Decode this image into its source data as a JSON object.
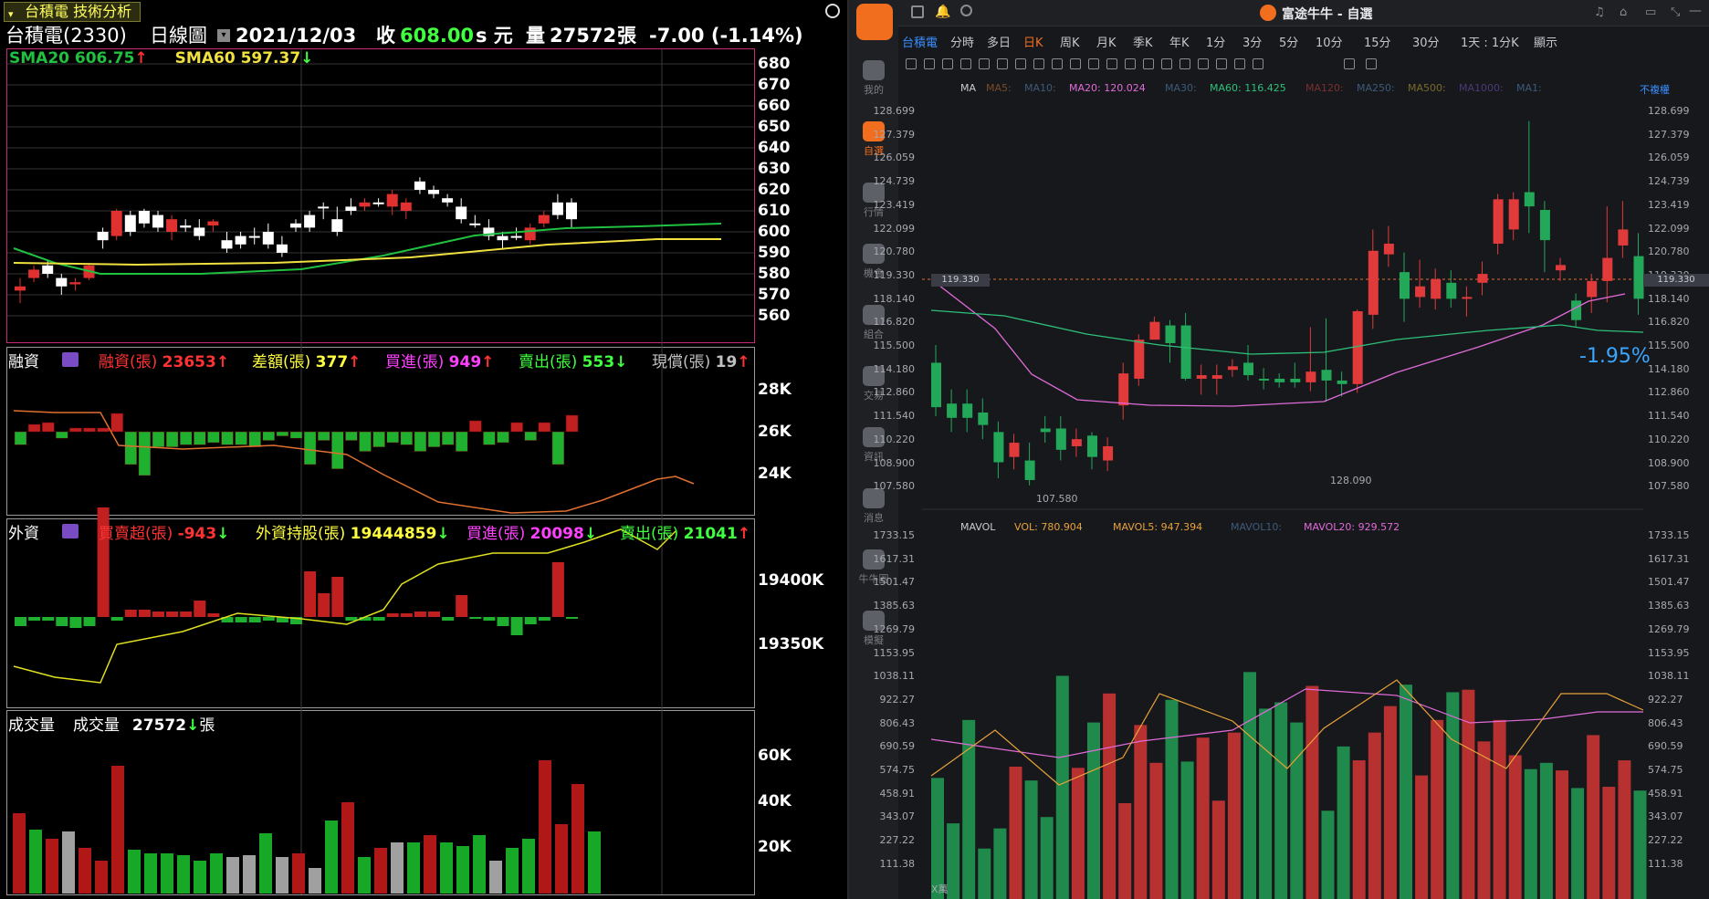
{
  "left": {
    "tab": "台積電 技術分析",
    "stock": "台積電(2330)",
    "period": "日線圖",
    "date": "2021/12/03",
    "close_label": "收",
    "close": "608.00",
    "close_unit": "s 元",
    "vol_label": "量",
    "volume": "27572",
    "vol_unit": "張",
    "change": "-7.00 (-1.14%)",
    "sma20": "SMA20 606.75",
    "sma60": "SMA60 597.37",
    "price_ticks": [
      "680",
      "670",
      "660",
      "650",
      "640",
      "630",
      "620",
      "610",
      "600",
      "590",
      "580",
      "570",
      "560"
    ],
    "margin": {
      "title": "融資",
      "items": [
        {
          "k": "融資(張)",
          "v": "23653",
          "c": "#ff3333",
          "d": "up"
        },
        {
          "k": "差額(張)",
          "v": "377",
          "c": "#ffff40",
          "d": "up"
        },
        {
          "k": "買進(張)",
          "v": "949",
          "c": "#ff40ff",
          "d": "up"
        },
        {
          "k": "賣出(張)",
          "v": "553",
          "c": "#40ff40",
          "d": "down"
        },
        {
          "k": "現償(張)",
          "v": "19",
          "c": "#c0c0c0",
          "d": "up"
        }
      ],
      "ticks": [
        "28K",
        "26K",
        "24K"
      ]
    },
    "foreign": {
      "title": "外資",
      "items": [
        {
          "k": "買賣超(張)",
          "v": "-943",
          "c": "#ff3333",
          "d": "down"
        },
        {
          "k": "外資持股(張)",
          "v": "19444859",
          "c": "#ffff40",
          "d": "down"
        },
        {
          "k": "買進(張)",
          "v": "20098",
          "c": "#ff40ff",
          "d": "down"
        },
        {
          "k": "賣出(張)",
          "v": "21041",
          "c": "#40ff40",
          "d": "up"
        }
      ],
      "ticks": [
        "19400K",
        "19350K"
      ]
    },
    "volpane": {
      "title": "成交量",
      "label": "成交量",
      "value": "27572",
      "unit": "張",
      "ticks": [
        "60K",
        "40K",
        "20K"
      ]
    }
  },
  "right": {
    "window_title": "富途牛牛 - 自選",
    "side": [
      "我的",
      "自選",
      "行情",
      "機會",
      "組合",
      "交易",
      "資訊",
      "消息",
      "牛牛圈",
      "模擬"
    ],
    "tabs": [
      "台積電",
      "分時",
      "多日",
      "日K",
      "周K",
      "月K",
      "季K",
      "年K",
      "1分",
      "3分",
      "5分",
      "10分",
      "15分",
      "30分",
      "1天 : 1分K",
      "顯示"
    ],
    "ma_labels": [
      {
        "t": "MA",
        "c": "#c9cbd2"
      },
      {
        "t": "MA5:",
        "c": "#7a4a2a"
      },
      {
        "t": "MA10:",
        "c": "#3d5a7a"
      },
      {
        "t": "MA20: 120.024",
        "c": "#e06bd8"
      },
      {
        "t": "MA30:",
        "c": "#3d5a7a"
      },
      {
        "t": "MA60: 116.425",
        "c": "#2ec07a"
      },
      {
        "t": "MA120:",
        "c": "#7a3030"
      },
      {
        "t": "MA250:",
        "c": "#3d5a7a"
      },
      {
        "t": "MA500:",
        "c": "#7a6a2a"
      },
      {
        "t": "MA1000:",
        "c": "#4a3a7a"
      },
      {
        "t": "MA1:",
        "c": "#3d5a7a"
      },
      {
        "t": "不複權",
        "c": "#3a8fff"
      }
    ],
    "price_ticks": [
      "128.699",
      "127.379",
      "126.059",
      "124.739",
      "123.419",
      "122.099",
      "120.780",
      "119.330",
      "118.140",
      "116.820",
      "115.500",
      "114.180",
      "112.860",
      "111.540",
      "110.220",
      "108.900",
      "107.580"
    ],
    "current_price": "119.330",
    "high_label": "128.090",
    "low_label": "107.580",
    "pct": "-1.95%",
    "vol_labels": [
      {
        "t": "MAVOL",
        "c": "#c9cbd2"
      },
      {
        "t": "VOL: 780.904",
        "c": "#e8a23a"
      },
      {
        "t": "MAVOL5: 947.394",
        "c": "#e8a23a"
      },
      {
        "t": "MAVOL10:",
        "c": "#3d5a7a"
      },
      {
        "t": "MAVOL20: 929.572",
        "c": "#e06bd8"
      }
    ],
    "vol_ticks": [
      "1733.15",
      "1617.31",
      "1501.47",
      "1385.63",
      "1269.79",
      "1153.95",
      "1038.11",
      "922.27",
      "806.43",
      "690.59",
      "574.75",
      "458.91",
      "343.07",
      "227.22",
      "111.38"
    ],
    "vol_unit": "X萬"
  },
  "colors": {
    "up_red": "#e03030",
    "down_green": "#20b050",
    "sma20": "#20c040",
    "sma60": "#f0e040"
  }
}
